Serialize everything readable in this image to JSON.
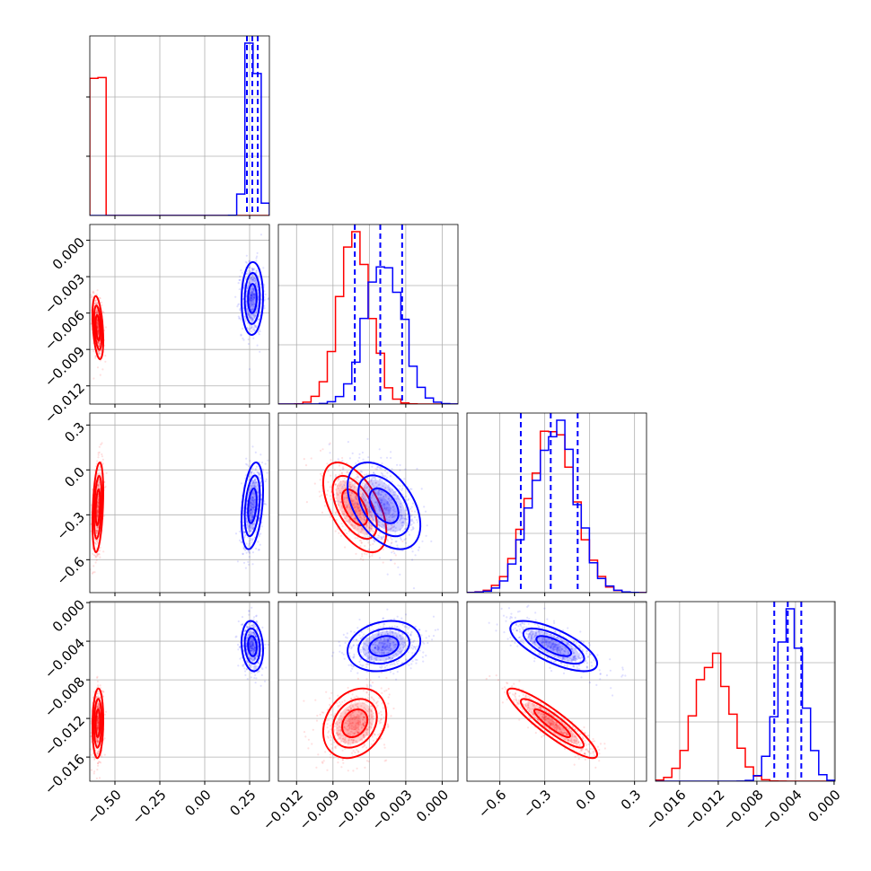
{
  "colors": {
    "red": "#ff0000",
    "blue": "#0000ff"
  },
  "chart_data": {
    "type": "corner",
    "grid": true,
    "series": [
      {
        "color": "#ff0000",
        "means": [
          -0.595,
          -0.0072,
          -0.25,
          -0.0125
        ],
        "sds": [
          0.015,
          0.0013,
          0.15,
          0.0018
        ]
      },
      {
        "color": "#0000ff",
        "means": [
          0.265,
          -0.0048,
          -0.24,
          -0.0045
        ],
        "sds": [
          0.03,
          0.0015,
          0.145,
          0.0013
        ]
      }
    ],
    "correlations": [
      {
        "pair": [
          1,
          0
        ],
        "red": -0.4,
        "blue": 0.05
      },
      {
        "pair": [
          2,
          0
        ],
        "red": 0.35,
        "blue": 0.35
      },
      {
        "pair": [
          2,
          1
        ],
        "red": -0.55,
        "blue": -0.45
      },
      {
        "pair": [
          3,
          0
        ],
        "red": 0.1,
        "blue": -0.15
      },
      {
        "pair": [
          3,
          1
        ],
        "red": 0.25,
        "blue": 0.2
      },
      {
        "pair": [
          3,
          2
        ],
        "red": -0.9,
        "blue": -0.7
      }
    ],
    "quantile_lines": [
      [
        0.235,
        0.265,
        0.295
      ],
      [
        -0.0072,
        -0.0051,
        -0.0033
      ],
      [
        -0.46,
        -0.26,
        -0.08
      ],
      [
        -0.0062,
        -0.0048,
        -0.0034
      ]
    ],
    "axes": [
      {
        "range": [
          -0.64,
          0.36
        ],
        "ticks": [
          -0.5,
          -0.25,
          0.0,
          0.25
        ],
        "labels": [
          "−0.50",
          "−0.25",
          "0.00",
          "0.25"
        ]
      },
      {
        "range": [
          -0.0135,
          0.0013
        ],
        "ticks": [
          -0.012,
          -0.009,
          -0.006,
          -0.003,
          0.0
        ],
        "labels": [
          "−0.012",
          "−0.009",
          "−0.006",
          "−0.003",
          "0.000"
        ]
      },
      {
        "range": [
          -0.82,
          0.38
        ],
        "ticks": [
          -0.6,
          -0.3,
          0.0,
          0.3
        ],
        "labels": [
          "−0.6",
          "−0.3",
          "0.0",
          "0.3"
        ]
      },
      {
        "range": [
          -0.0185,
          0.0001
        ],
        "ticks": [
          -0.016,
          -0.012,
          -0.008,
          -0.004,
          0.0
        ],
        "labels": [
          "−0.016",
          "−0.012",
          "−0.008",
          "−0.004",
          "0.000"
        ]
      }
    ]
  }
}
